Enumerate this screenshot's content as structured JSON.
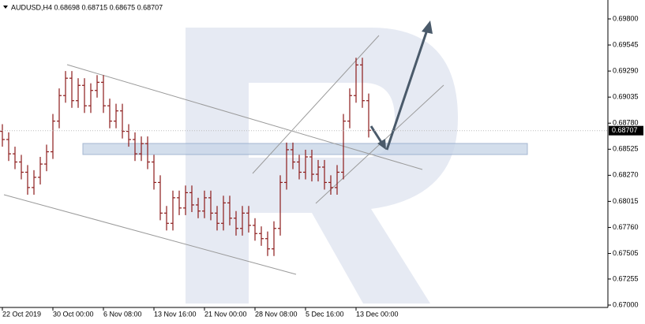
{
  "chart_data": {
    "type": "ohlc",
    "title": "AUDUSD,H4  0.68698 0.68715 0.68675 0.68707",
    "color": "#8b1a1a",
    "categories": [
      "22 Oct 2019",
      null,
      null,
      null,
      null,
      null,
      null,
      null,
      "30 Oct 00:00",
      null,
      null,
      null,
      null,
      null,
      null,
      null,
      "6 Nov 08:00",
      null,
      null,
      null,
      null,
      null,
      null,
      null,
      "13 Nov 16:00",
      null,
      null,
      null,
      null,
      null,
      null,
      null,
      "21 Nov 00:00",
      null,
      null,
      null,
      null,
      null,
      null,
      null,
      "28 Nov 08:00",
      null,
      null,
      null,
      null,
      null,
      null,
      null,
      "5 Dec 16:00",
      null,
      null,
      null,
      null,
      null,
      null,
      null,
      "13 Dec 00:00",
      null,
      null
    ],
    "open": [
      0.687,
      0.6862,
      0.6848,
      0.684,
      0.683,
      0.6815,
      0.6825,
      0.6838,
      0.685,
      0.688,
      0.6905,
      0.6922,
      0.69,
      0.6915,
      0.6895,
      0.691,
      0.6918,
      0.6895,
      0.688,
      0.689,
      0.687,
      0.6862,
      0.6848,
      0.6858,
      0.684,
      0.682,
      0.679,
      0.678,
      0.6805,
      0.6795,
      0.681,
      0.6798,
      0.6792,
      0.6805,
      0.679,
      0.678,
      0.68,
      0.6785,
      0.6775,
      0.679,
      0.6778,
      0.677,
      0.6765,
      0.6755,
      0.6775,
      0.682,
      0.6852,
      0.684,
      0.683,
      0.6845,
      0.6828,
      0.6835,
      0.682,
      0.6815,
      0.683,
      0.688,
      0.6905,
      0.6935,
      0.69
    ],
    "high": [
      0.6877,
      0.6869,
      0.6855,
      0.6847,
      0.6837,
      0.6832,
      0.6845,
      0.6857,
      0.6887,
      0.6912,
      0.6929,
      0.6929,
      0.6922,
      0.6922,
      0.6917,
      0.6925,
      0.6925,
      0.6902,
      0.6897,
      0.6897,
      0.6877,
      0.6869,
      0.6865,
      0.6865,
      0.6847,
      0.6827,
      0.6797,
      0.6812,
      0.6812,
      0.6817,
      0.6817,
      0.6805,
      0.6812,
      0.6812,
      0.6797,
      0.6807,
      0.6807,
      0.6792,
      0.6797,
      0.6797,
      0.6785,
      0.6777,
      0.6772,
      0.6782,
      0.6827,
      0.6859,
      0.6859,
      0.6847,
      0.6852,
      0.6852,
      0.6842,
      0.6842,
      0.6827,
      0.6837,
      0.6887,
      0.6912,
      0.6942,
      0.6942,
      0.6907
    ],
    "low": [
      0.6855,
      0.6841,
      0.6833,
      0.6823,
      0.6808,
      0.6808,
      0.6818,
      0.6831,
      0.6843,
      0.6873,
      0.6898,
      0.6893,
      0.6893,
      0.6888,
      0.6888,
      0.6903,
      0.6888,
      0.6873,
      0.6873,
      0.6863,
      0.6855,
      0.6841,
      0.6841,
      0.6833,
      0.6813,
      0.6783,
      0.6773,
      0.6773,
      0.6788,
      0.6788,
      0.6791,
      0.6785,
      0.6785,
      0.6783,
      0.6773,
      0.6773,
      0.6778,
      0.6768,
      0.6768,
      0.6771,
      0.6763,
      0.6758,
      0.6748,
      0.6748,
      0.6768,
      0.6813,
      0.6833,
      0.6823,
      0.6823,
      0.6821,
      0.6821,
      0.6813,
      0.6808,
      0.6808,
      0.6823,
      0.6873,
      0.6898,
      0.6893,
      0.6864
    ],
    "close": [
      0.6862,
      0.6848,
      0.684,
      0.683,
      0.6815,
      0.6825,
      0.6838,
      0.685,
      0.688,
      0.6905,
      0.6922,
      0.69,
      0.6915,
      0.6895,
      0.691,
      0.6918,
      0.6895,
      0.688,
      0.689,
      0.687,
      0.6862,
      0.6848,
      0.6858,
      0.684,
      0.682,
      0.679,
      0.678,
      0.6805,
      0.6795,
      0.681,
      0.6798,
      0.6792,
      0.6805,
      0.679,
      0.678,
      0.68,
      0.6785,
      0.6775,
      0.679,
      0.6778,
      0.677,
      0.6765,
      0.6755,
      0.6775,
      0.682,
      0.6852,
      0.684,
      0.683,
      0.6845,
      0.6828,
      0.6835,
      0.682,
      0.6815,
      0.683,
      0.688,
      0.6905,
      0.6935,
      0.69,
      0.6871
    ],
    "current_price": {
      "value": 0.68707,
      "label": "0.68707"
    },
    "ylim": [
      0.67,
      0.698
    ],
    "yticks": [
      {
        "value": 0.698,
        "label": "0.69800"
      },
      {
        "value": 0.69545,
        "label": "0.69545"
      },
      {
        "value": 0.6929,
        "label": "0.69290"
      },
      {
        "value": 0.69035,
        "label": "0.69035"
      },
      {
        "value": 0.6878,
        "label": "0.68780"
      },
      {
        "value": 0.68525,
        "label": "0.68525"
      },
      {
        "value": 0.6827,
        "label": "0.68270"
      },
      {
        "value": 0.68015,
        "label": "0.68015"
      },
      {
        "value": 0.6776,
        "label": "0.67760"
      },
      {
        "value": 0.67505,
        "label": "0.67505"
      },
      {
        "value": 0.67255,
        "label": "0.67255"
      },
      {
        "value": 0.67,
        "label": "0.67000"
      }
    ],
    "grid": false
  }
}
